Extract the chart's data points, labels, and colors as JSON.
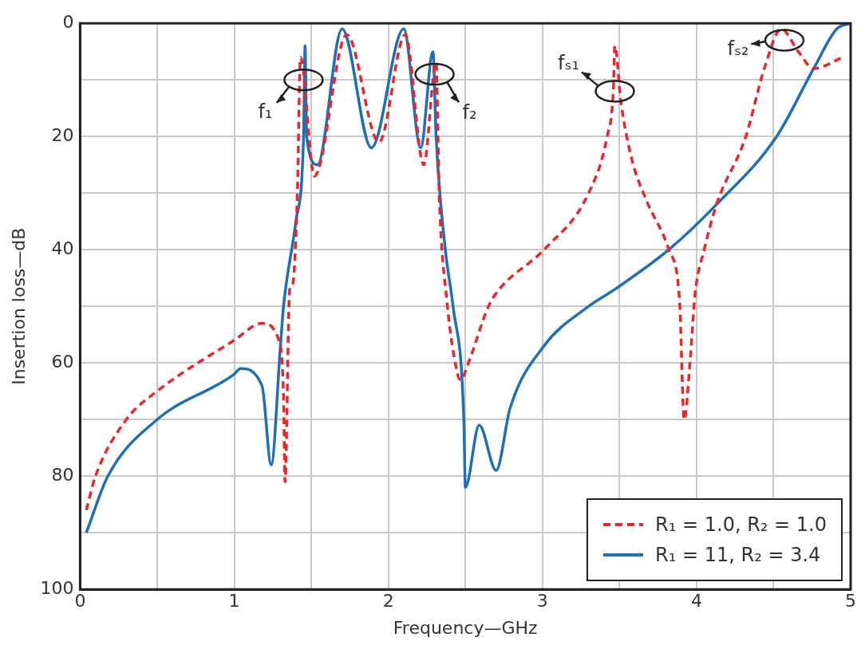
{
  "chart_data": {
    "type": "line",
    "xlabel": "Frequency—GHz",
    "ylabel": "Insertion loss—dB",
    "xlim": [
      0,
      5
    ],
    "xticks": [
      0,
      {
        "value": 0.5,
        "label": null
      },
      1,
      {
        "value": 1.5,
        "label": null
      },
      2,
      {
        "value": 2.5,
        "label": null
      },
      3,
      {
        "value": 3.5,
        "label": null
      },
      4,
      {
        "value": 4.5,
        "label": null
      },
      5
    ],
    "ylim": [
      100,
      0
    ],
    "yticks": [
      0,
      {
        "value": 10,
        "label": null
      },
      20,
      {
        "value": 30,
        "label": null
      },
      40,
      {
        "value": 50,
        "label": null
      },
      60,
      {
        "value": 70,
        "label": null
      },
      80,
      {
        "value": 90,
        "label": null
      },
      100
    ],
    "grid": true,
    "legend": "bottom right",
    "marker": "none",
    "annotations": [
      {
        "text": "f₁",
        "x": 1.45,
        "y": 10
      },
      {
        "text": "f₂",
        "x": 2.3,
        "y": 9
      },
      {
        "text": "fₛ₁",
        "x": 3.47,
        "y": 12
      },
      {
        "text": "fₛ₂",
        "x": 4.57,
        "y": 3
      }
    ],
    "series": [
      {
        "name": "R₁ = 1.0, R₂ = 1.0",
        "color": "#e8262b",
        "line_style": "dashed",
        "x": [
          0.04,
          0.1,
          0.3,
          0.5,
          1.0,
          1.18,
          1.29,
          1.32,
          1.33,
          1.36,
          1.38,
          1.41,
          1.43,
          1.52,
          1.73,
          1.94,
          2.11,
          2.23,
          2.31,
          2.33,
          2.38,
          2.45,
          2.47,
          2.52,
          2.65,
          2.72,
          3.01,
          3.3,
          3.42,
          3.46,
          3.47,
          3.51,
          3.58,
          3.67,
          3.82,
          3.89,
          3.92,
          3.96,
          3.99,
          4.05,
          4.13,
          4.32,
          4.44,
          4.55,
          4.66,
          4.76,
          4.95
        ],
        "values": [
          86,
          80,
          70,
          65,
          56,
          53,
          56,
          66,
          81,
          47,
          46,
          30,
          6,
          27,
          2,
          21,
          2,
          25,
          7,
          30,
          49,
          62,
          63,
          60,
          50,
          47,
          40,
          30,
          20,
          12,
          4,
          14,
          24,
          31,
          40,
          49,
          70,
          59,
          48,
          40,
          32,
          20,
          8,
          1,
          5,
          8,
          6
        ]
      },
      {
        "name": "R₁ = 11, R₂ = 3.4",
        "color": "#1f6fb8",
        "line_style": "solid",
        "x": [
          0.04,
          0.18,
          0.5,
          1.0,
          1.04,
          1.18,
          1.24,
          1.3,
          1.32,
          1.4,
          1.45,
          1.46,
          1.47,
          1.54,
          1.7,
          1.89,
          2.1,
          2.21,
          2.29,
          2.31,
          2.37,
          2.42,
          2.49,
          2.5,
          2.59,
          2.7,
          2.79,
          3.01,
          3.3,
          3.47,
          3.82,
          4.13,
          4.52,
          4.76,
          4.91,
          5.0
        ],
        "values": [
          90,
          80,
          70,
          62,
          61,
          64,
          78,
          57,
          50,
          35,
          20,
          4,
          20,
          25,
          1,
          22,
          1,
          22,
          5,
          20,
          40,
          50,
          70,
          82,
          71,
          79,
          68,
          57,
          50,
          47,
          40,
          32,
          20,
          8,
          1,
          0
        ]
      }
    ]
  }
}
